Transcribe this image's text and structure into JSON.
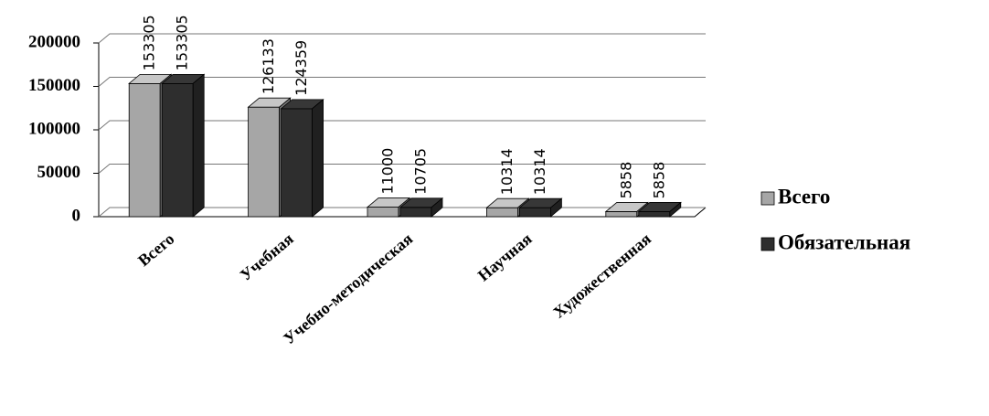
{
  "chart_data": {
    "type": "bar",
    "categories": [
      "Всего",
      "Учебная",
      "Учебно-методическая",
      "Научная",
      "Художественная"
    ],
    "series": [
      {
        "name": "Всего",
        "color": "#a6a6a6",
        "values": [
          153305,
          126133,
          11000,
          10314,
          5858
        ]
      },
      {
        "name": "Обязательная",
        "color": "#2e2e2e",
        "values": [
          153305,
          124359,
          10705,
          10314,
          5858
        ]
      }
    ],
    "ylim": [
      0,
      200000
    ],
    "yticks": [
      0,
      50000,
      100000,
      150000,
      200000
    ],
    "grid": true,
    "legend": "right"
  }
}
